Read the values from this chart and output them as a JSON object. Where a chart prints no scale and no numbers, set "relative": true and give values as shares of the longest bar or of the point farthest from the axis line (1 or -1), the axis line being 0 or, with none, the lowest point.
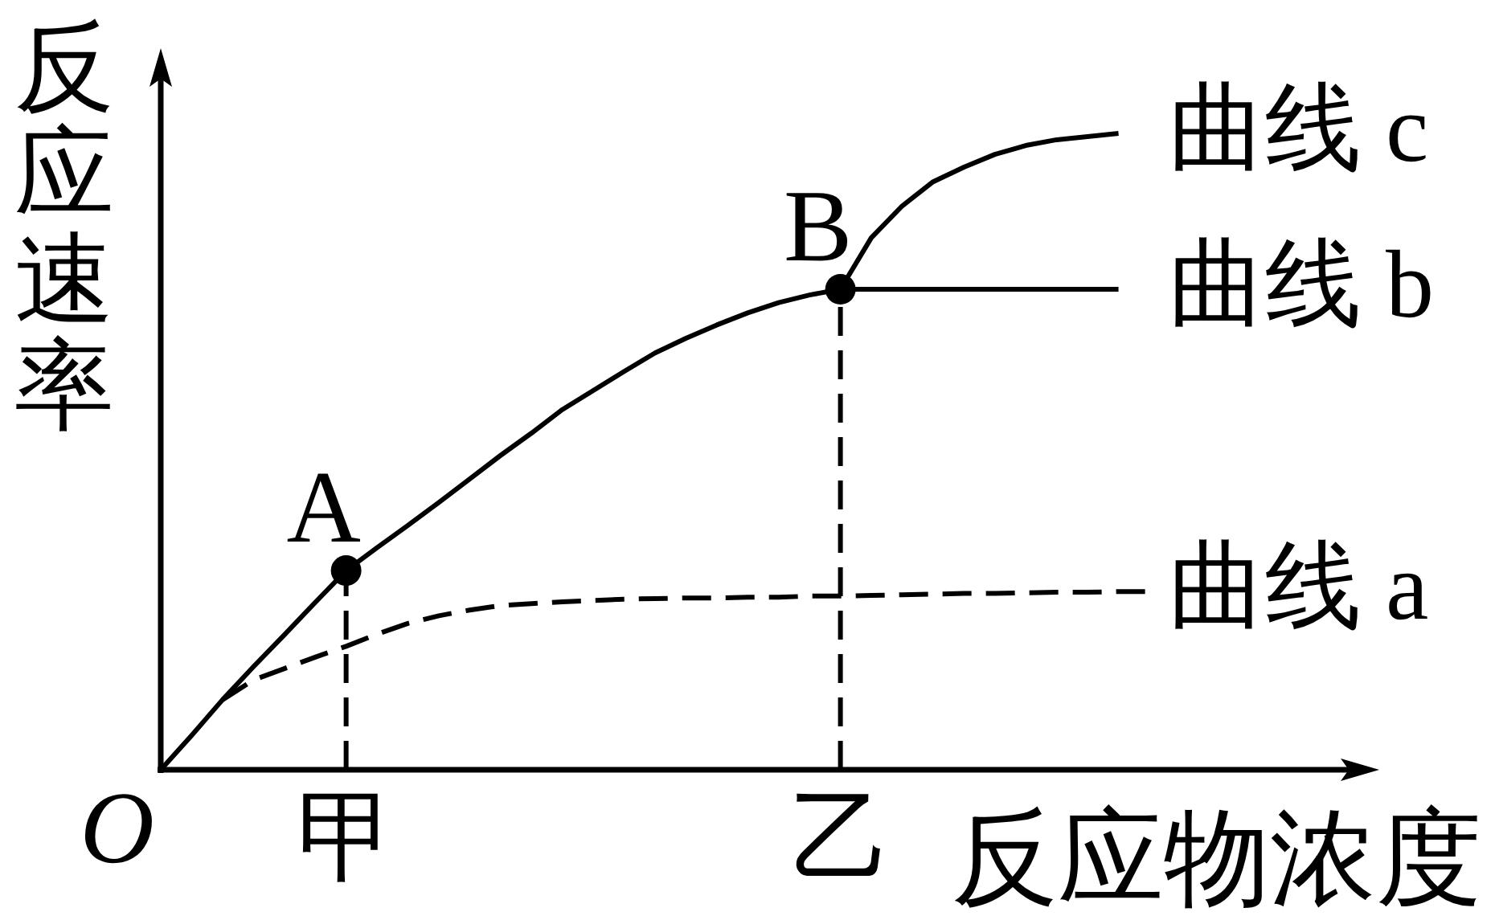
{
  "chart_data": {
    "type": "line",
    "relative": true,
    "xlabel": "反应物浓度",
    "ylabel": "反应速率",
    "categories": [
      null,
      null,
      null,
      null,
      null,
      null,
      "甲",
      null,
      null,
      null,
      null,
      null,
      null,
      null,
      null,
      null,
      null,
      null,
      null,
      null,
      null,
      null,
      "乙",
      null,
      null,
      null,
      null,
      null,
      null,
      null,
      null,
      null,
      null
    ],
    "series": [
      {
        "name": "曲线 b",
        "color": "#000000",
        "line_style": "solid",
        "values": [
          0,
          0.054,
          0.11,
          0.162,
          0.212,
          0.263,
          0.313,
          0.349,
          0.384,
          0.42,
          0.457,
          0.494,
          0.529,
          0.566,
          0.596,
          0.626,
          0.655,
          0.678,
          0.699,
          0.718,
          0.734,
          0.746,
          0.755,
          0.755,
          0.755,
          0.755,
          0.755,
          0.755,
          0.755,
          0.755,
          0.755,
          0.755,
          null
        ]
      },
      {
        "name": "曲线 c",
        "color": "#000000",
        "line_style": "solid",
        "values": [
          null,
          null,
          null,
          null,
          null,
          null,
          null,
          null,
          null,
          null,
          null,
          null,
          null,
          null,
          null,
          null,
          null,
          null,
          null,
          null,
          null,
          null,
          0.755,
          0.836,
          0.886,
          0.924,
          0.947,
          0.967,
          0.981,
          0.99,
          0.995,
          1,
          null
        ]
      },
      {
        "name": "曲线 a",
        "color": "#000000",
        "line_style": "dashed",
        "values": [
          null,
          null,
          0.11,
          0.141,
          0.159,
          0.177,
          0.194,
          0.213,
          0.23,
          0.242,
          0.251,
          0.258,
          0.261,
          0.264,
          0.266,
          0.268,
          0.269,
          0.27,
          0.27,
          0.271,
          0.271,
          0.273,
          0.273,
          0.274,
          0.275,
          0.276,
          0.277,
          0.277,
          0.278,
          0.279,
          0.279,
          0.28,
          0.28
        ]
      },
      {
        "type": "line",
        "color": "#000000",
        "line_style": "dashed",
        "x": [
          "甲",
          "甲"
        ],
        "values": [
          0,
          0.313
        ]
      },
      {
        "type": "line",
        "color": "#000000",
        "line_style": "dashed",
        "x": [
          "乙",
          "乙"
        ],
        "values": [
          0,
          0.755
        ]
      },
      {
        "type": "scatter",
        "color": "#000000",
        "marker": "circle",
        "x": [
          "甲",
          "乙"
        ],
        "values": [
          0.313,
          0.755
        ]
      }
    ],
    "annotations": [
      "O",
      {
        "text": "A",
        "x": "甲",
        "y": 0.313
      },
      {
        "text": "B",
        "x": "乙",
        "y": 0.755
      }
    ]
  }
}
